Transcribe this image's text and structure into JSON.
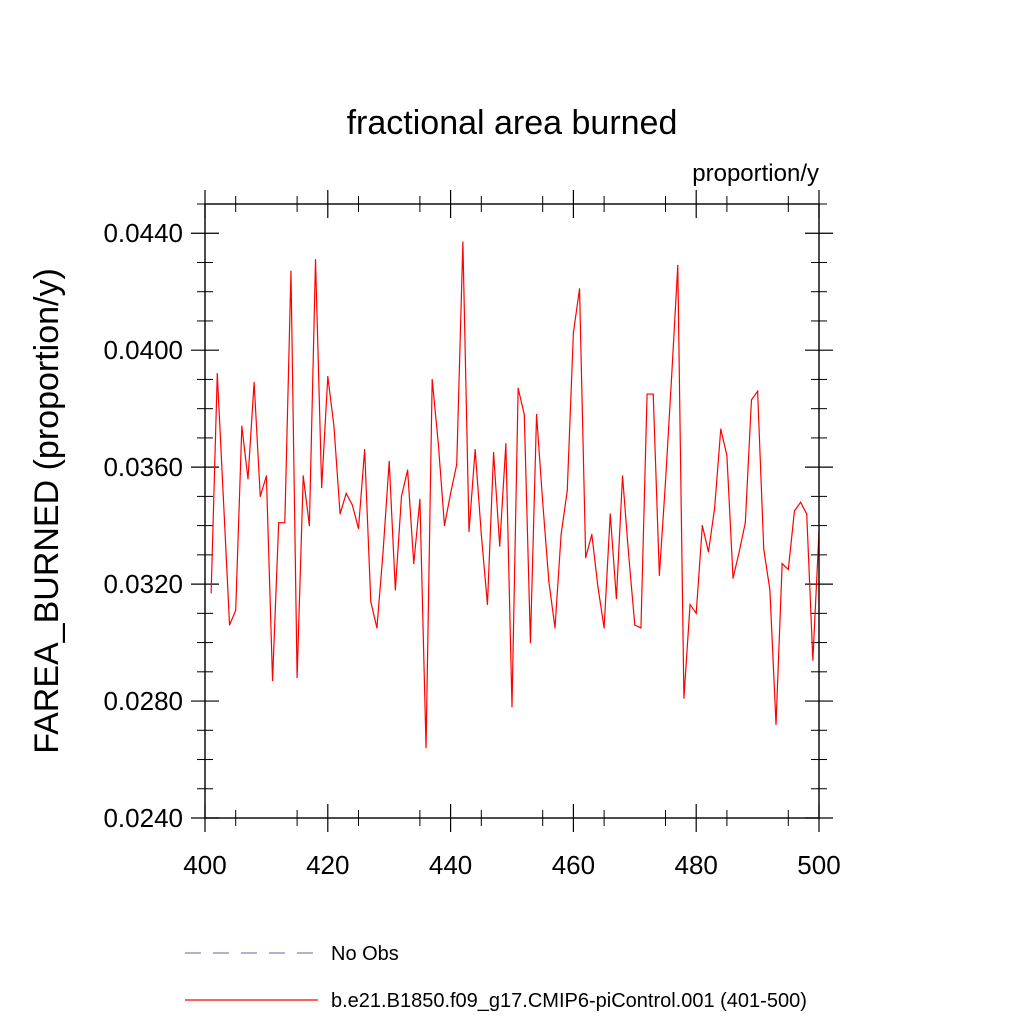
{
  "chart_data": {
    "type": "line",
    "title": "fractional area burned",
    "subtitle": "proportion/y",
    "ylabel": "FAREA_BURNED  (proportion/y)",
    "xlabel": "",
    "xlim": [
      400,
      500
    ],
    "ylim": [
      0.024,
      0.045
    ],
    "x_ticks": [
      400,
      420,
      440,
      460,
      480,
      500
    ],
    "y_ticks": [
      0.024,
      0.028,
      0.032,
      0.036,
      0.04,
      0.044
    ],
    "y_tick_labels": [
      "0.0240",
      "0.0280",
      "0.0320",
      "0.0360",
      "0.0400",
      "0.0440"
    ],
    "grid": false,
    "legend_position": "bottom",
    "legend": [
      {
        "label": "No Obs",
        "color": "#8080c0",
        "style": "dashed"
      },
      {
        "label": "b.e21.B1850.f09_g17.CMIP6-piControl.001 (401-500)",
        "color": "#ff0000",
        "style": "solid"
      }
    ],
    "series": [
      {
        "color": "#ff0000",
        "x": [
          401,
          402,
          403,
          404,
          405,
          406,
          407,
          408,
          409,
          410,
          411,
          412,
          413,
          414,
          415,
          416,
          417,
          418,
          419,
          420,
          421,
          422,
          423,
          424,
          425,
          426,
          427,
          428,
          429,
          430,
          431,
          432,
          433,
          434,
          435,
          436,
          437,
          438,
          439,
          440,
          441,
          442,
          443,
          444,
          445,
          446,
          447,
          448,
          449,
          450,
          451,
          452,
          453,
          454,
          455,
          456,
          457,
          458,
          459,
          460,
          461,
          462,
          463,
          464,
          465,
          466,
          467,
          468,
          469,
          470,
          471,
          472,
          473,
          474,
          475,
          476,
          477,
          478,
          479,
          480,
          481,
          482,
          483,
          484,
          485,
          486,
          487,
          488,
          489,
          490,
          491,
          492,
          493,
          494,
          495,
          496,
          497,
          498,
          499,
          500
        ],
        "values": [
          0.0317,
          0.0392,
          0.0349,
          0.0306,
          0.0311,
          0.0374,
          0.0356,
          0.0389,
          0.035,
          0.0357,
          0.0287,
          0.0341,
          0.0341,
          0.0427,
          0.0288,
          0.0357,
          0.034,
          0.0431,
          0.0353,
          0.0391,
          0.0374,
          0.0344,
          0.0351,
          0.0347,
          0.0339,
          0.0366,
          0.0314,
          0.0305,
          0.0331,
          0.0362,
          0.0318,
          0.035,
          0.0359,
          0.0327,
          0.0349,
          0.0264,
          0.039,
          0.0368,
          0.034,
          0.0351,
          0.0361,
          0.0437,
          0.0338,
          0.0366,
          0.0337,
          0.0313,
          0.0365,
          0.0333,
          0.0368,
          0.0278,
          0.0387,
          0.0378,
          0.03,
          0.0378,
          0.0348,
          0.0321,
          0.0305,
          0.0337,
          0.0352,
          0.0406,
          0.0421,
          0.0329,
          0.0337,
          0.0319,
          0.0305,
          0.0344,
          0.0315,
          0.0357,
          0.033,
          0.0306,
          0.0305,
          0.0385,
          0.0385,
          0.0323,
          0.0355,
          0.0391,
          0.0429,
          0.0281,
          0.0313,
          0.031,
          0.034,
          0.0331,
          0.0346,
          0.0373,
          0.0364,
          0.0322,
          0.0331,
          0.0341,
          0.0383,
          0.0386,
          0.0332,
          0.0318,
          0.0272,
          0.0327,
          0.0325,
          0.0345,
          0.0348,
          0.0344,
          0.0294,
          0.0338
        ]
      }
    ]
  }
}
